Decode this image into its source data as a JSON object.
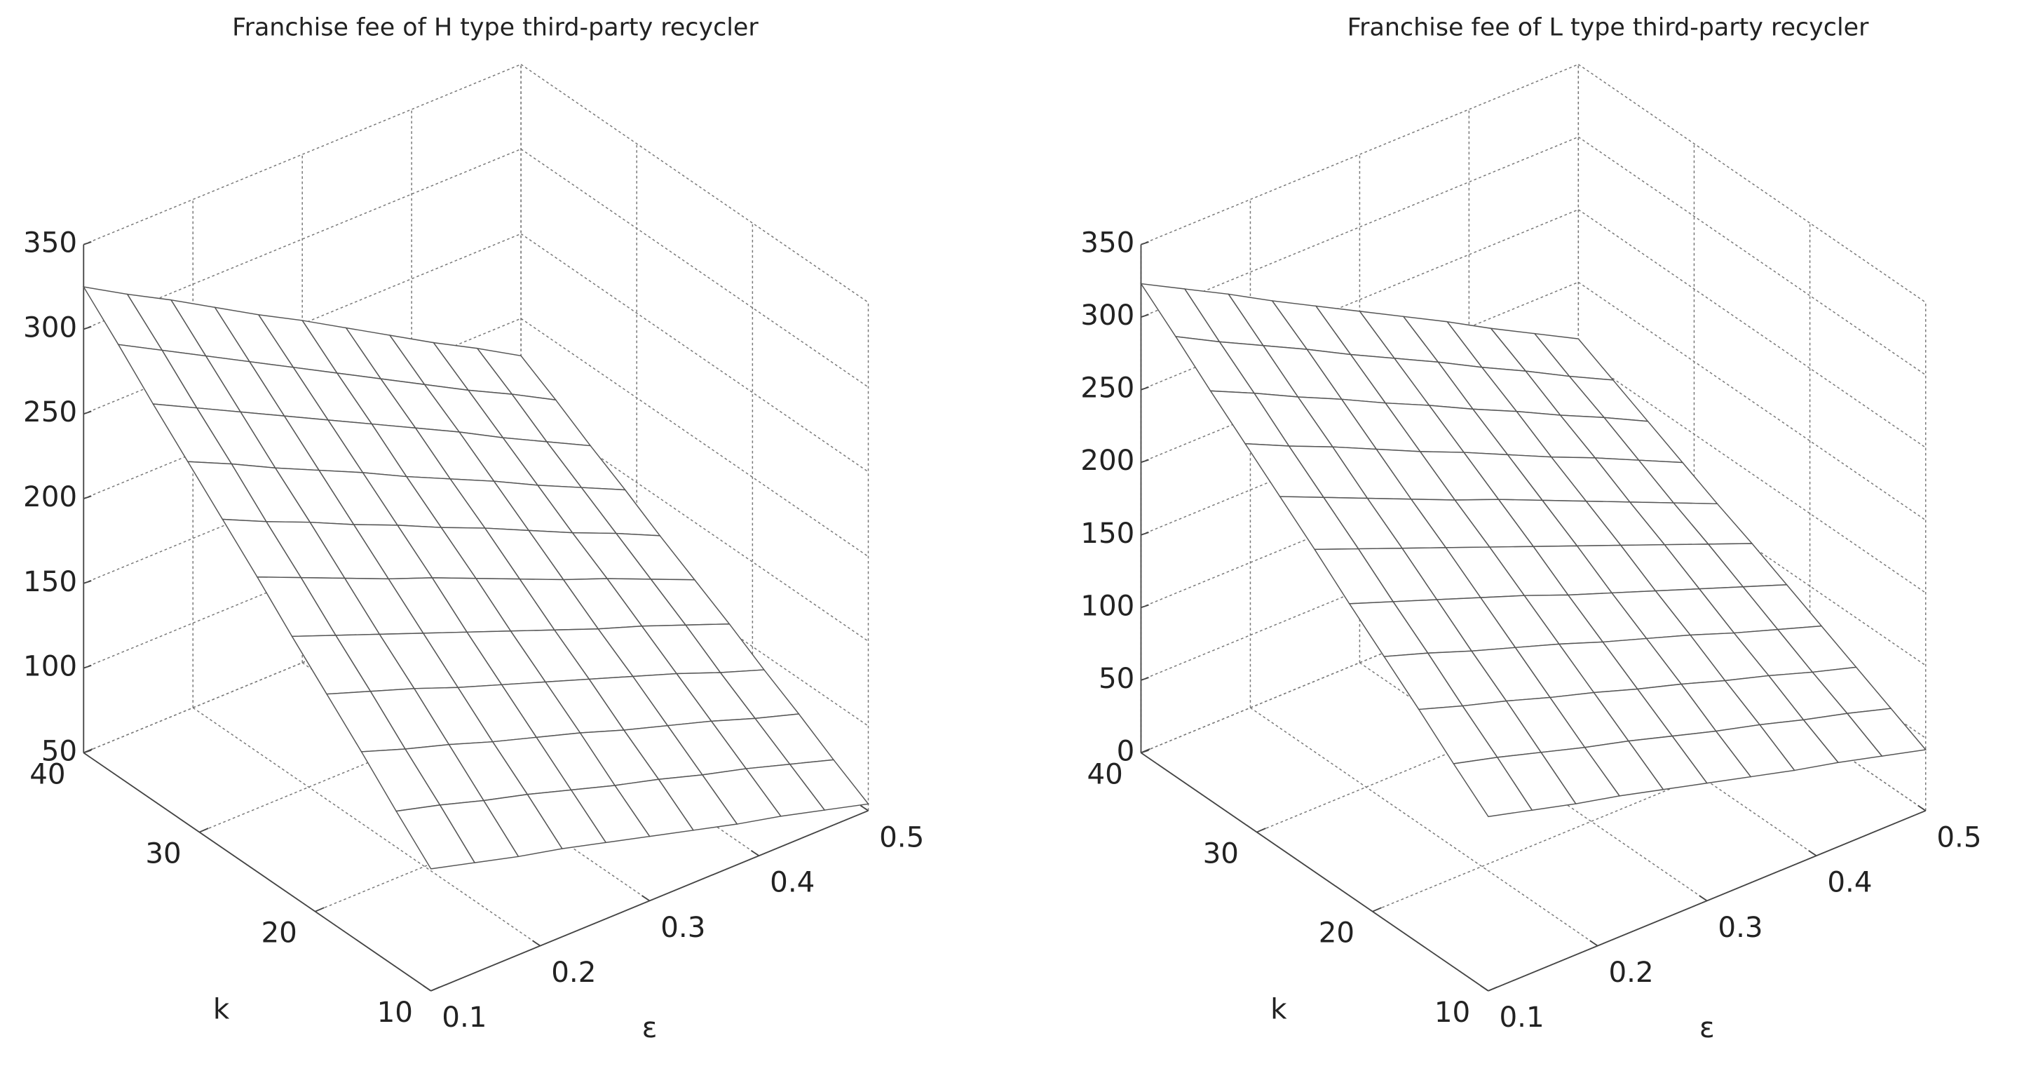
{
  "chart_data": [
    {
      "type": "surface",
      "title": "Franchise fee of H type third-party recycler",
      "xlabel": "ε",
      "ylabel": "k",
      "x": [
        0.1,
        0.14,
        0.18,
        0.22,
        0.26,
        0.3,
        0.34,
        0.38,
        0.42,
        0.46,
        0.5
      ],
      "y": [
        10,
        13,
        16,
        19,
        22,
        25,
        28,
        31,
        34,
        37,
        40
      ],
      "values": [
        [
          122,
          115,
          108,
          102,
          95,
          88,
          81,
          74,
          68,
          61,
          54
        ],
        [
          142,
          135,
          127,
          120,
          112,
          104,
          97,
          89,
          82,
          74,
          66
        ],
        [
          163,
          154,
          146,
          137,
          129,
          121,
          112,
          104,
          96,
          87,
          79
        ],
        [
          183,
          174,
          165,
          155,
          146,
          137,
          128,
          119,
          110,
          100,
          91
        ],
        [
          203,
          193,
          183,
          173,
          163,
          153,
          143,
          133,
          124,
          114,
          104
        ],
        [
          224,
          213,
          202,
          191,
          181,
          170,
          159,
          148,
          138,
          127,
          116
        ],
        [
          244,
          232,
          221,
          209,
          198,
          186,
          175,
          163,
          151,
          140,
          128
        ],
        [
          264,
          252,
          239,
          227,
          215,
          202,
          190,
          178,
          165,
          153,
          141
        ],
        [
          284,
          271,
          258,
          245,
          232,
          219,
          206,
          193,
          179,
          166,
          153
        ],
        [
          305,
          291,
          277,
          263,
          249,
          235,
          221,
          207,
          193,
          180,
          166
        ],
        [
          325,
          310,
          296,
          281,
          266,
          252,
          237,
          222,
          207,
          193,
          178
        ]
      ],
      "xlim": [
        0.1,
        0.5
      ],
      "xticks": [
        0.1,
        0.2,
        0.3,
        0.4,
        0.5
      ],
      "ylim": [
        10,
        40
      ],
      "yticks": [
        10,
        20,
        30,
        40
      ],
      "zlim": [
        50,
        350
      ],
      "zticks": [
        50,
        100,
        150,
        200,
        250,
        300,
        350
      ],
      "grid": true,
      "color": "#555555"
    },
    {
      "type": "surface",
      "title": "Franchise fee of L type third-party recycler",
      "xlabel": "ε",
      "ylabel": "k",
      "x": [
        0.1,
        0.14,
        0.18,
        0.22,
        0.26,
        0.3,
        0.34,
        0.38,
        0.42,
        0.46,
        0.5
      ],
      "y": [
        10,
        13,
        16,
        19,
        22,
        25,
        28,
        31,
        34,
        37,
        40
      ],
      "values": [
        [
          120,
          112,
          104,
          97,
          89,
          81,
          73,
          65,
          58,
          50,
          42
        ],
        [
          140,
          132,
          123,
          114,
          106,
          97,
          88,
          80,
          71,
          63,
          54
        ],
        [
          161,
          151,
          142,
          132,
          123,
          113,
          104,
          94,
          85,
          75,
          66
        ],
        [
          181,
          171,
          160,
          150,
          140,
          129,
          119,
          109,
          98,
          88,
          78
        ],
        [
          201,
          190,
          179,
          168,
          157,
          145,
          134,
          123,
          112,
          101,
          90
        ],
        [
          222,
          210,
          198,
          186,
          174,
          162,
          150,
          138,
          126,
          114,
          102
        ],
        [
          242,
          229,
          216,
          203,
          190,
          178,
          165,
          152,
          139,
          126,
          113
        ],
        [
          262,
          248,
          235,
          221,
          207,
          194,
          180,
          166,
          153,
          139,
          125
        ],
        [
          282,
          268,
          253,
          239,
          224,
          210,
          195,
          181,
          166,
          152,
          137
        ],
        [
          303,
          287,
          272,
          257,
          241,
          226,
          211,
          195,
          180,
          164,
          149
        ],
        [
          323,
          307,
          291,
          274,
          258,
          242,
          226,
          210,
          193,
          177,
          161
        ]
      ],
      "xlim": [
        0.1,
        0.5
      ],
      "xticks": [
        0.1,
        0.2,
        0.3,
        0.4,
        0.5
      ],
      "ylim": [
        10,
        40
      ],
      "yticks": [
        10,
        20,
        30,
        40
      ],
      "zlim": [
        0,
        350
      ],
      "zticks": [
        0,
        50,
        100,
        150,
        200,
        250,
        300,
        350
      ],
      "grid": true,
      "color": "#555555"
    }
  ]
}
